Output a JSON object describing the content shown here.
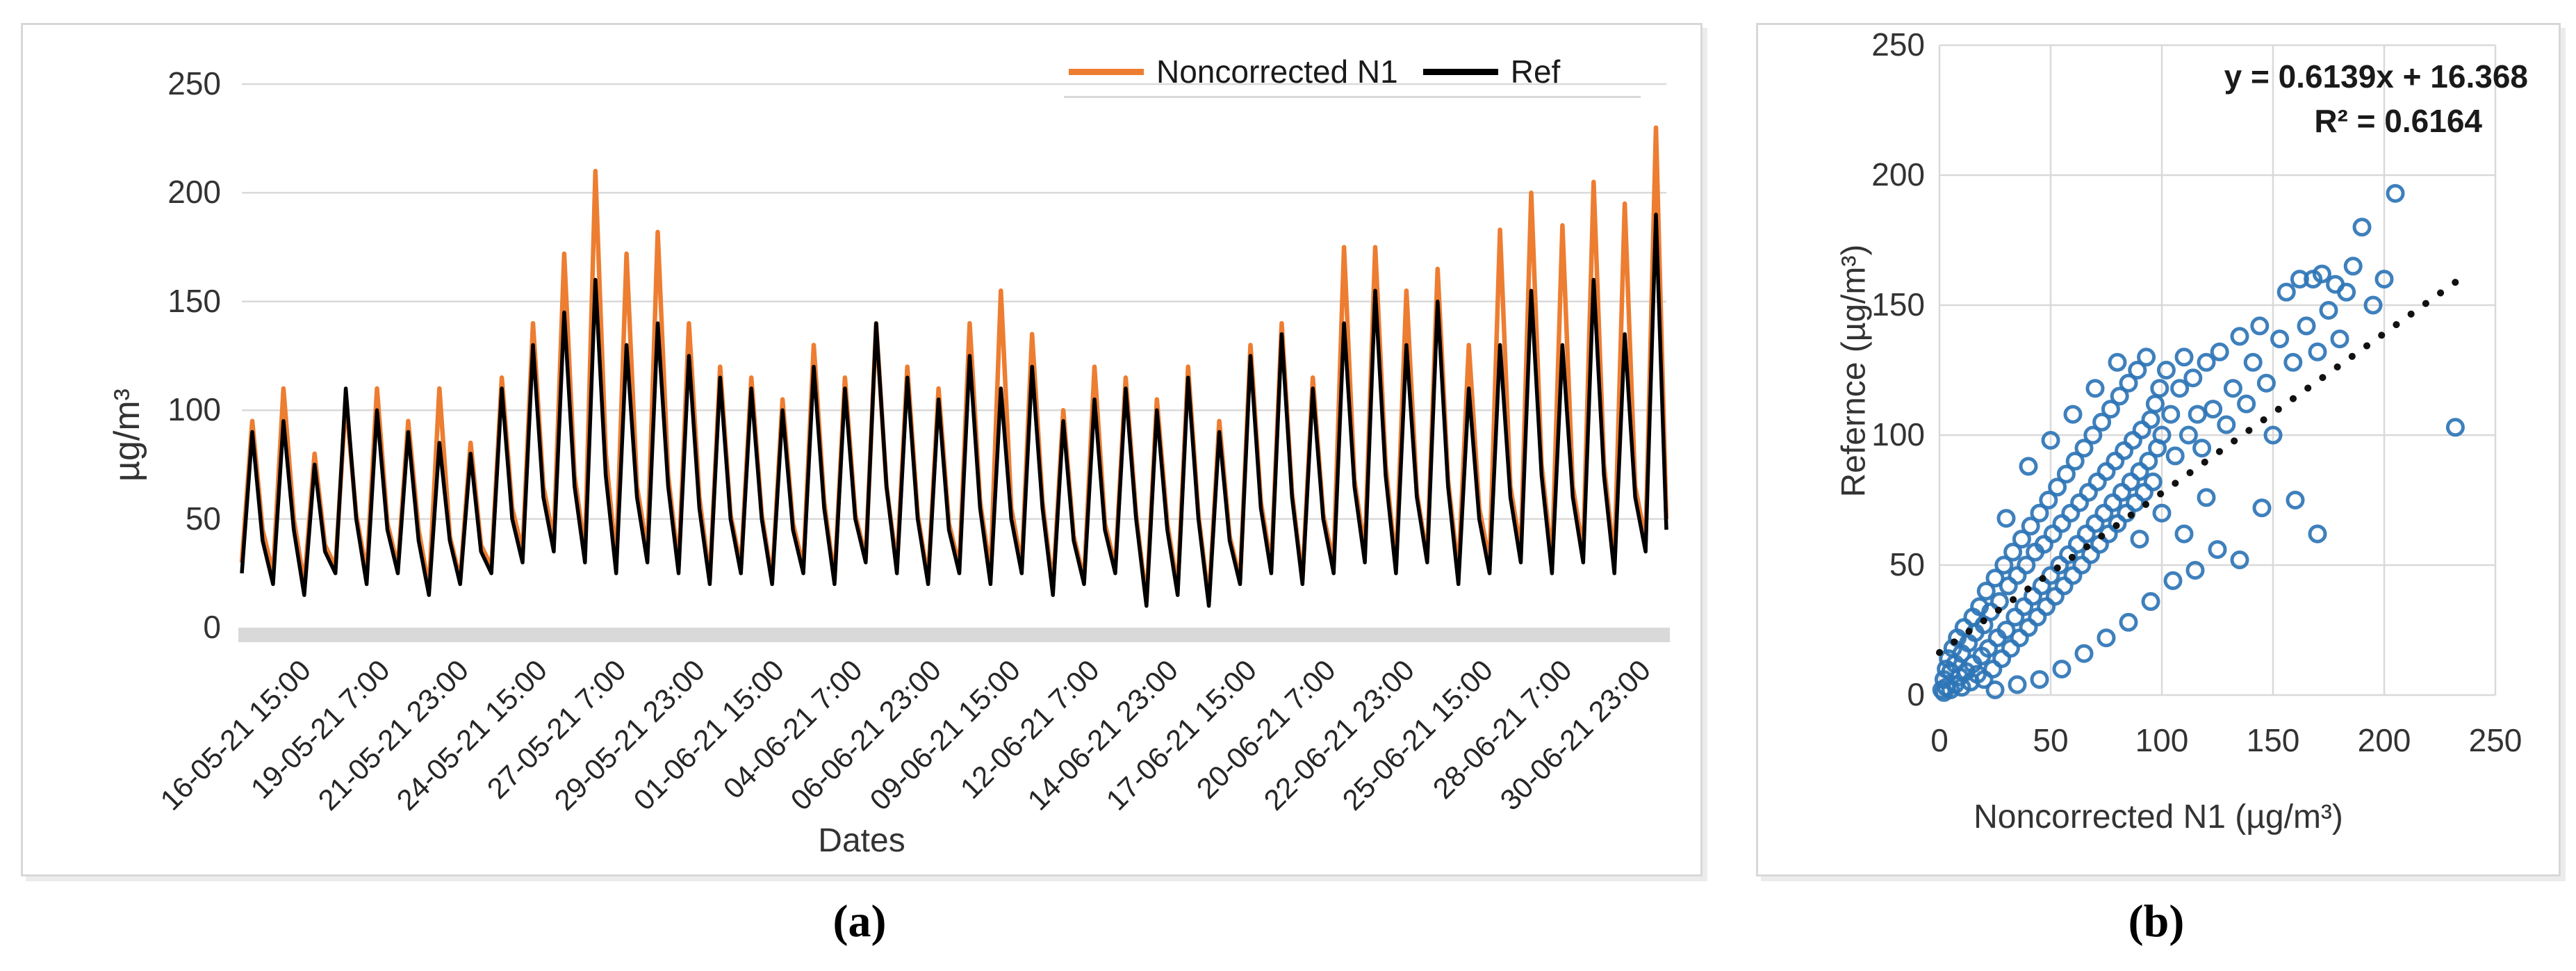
{
  "figure": {
    "panel_a": {
      "caption": "(a)",
      "y_axis_label": "µg/m³",
      "x_axis_label": "Dates"
    },
    "panel_b": {
      "caption": "(b)",
      "y_axis_label": "Refernce (µg/m³)",
      "x_axis_label": "Noncorrected N1 (µg/m³)",
      "equation_line1": "y = 0.6139x + 16.368",
      "equation_line2": "R² = 0.6164"
    },
    "colors": {
      "noncorrected": "#ED7D31",
      "ref": "#000000",
      "scatter": "#2E75B6",
      "grid": "#D9D9D9",
      "baseline_band": "#D9D9D9",
      "trendline": "#111111"
    }
  },
  "chart_data": [
    {
      "type": "line",
      "title": "",
      "xlabel": "Dates",
      "ylabel": "µg/m³",
      "ylim": [
        0,
        250
      ],
      "y_ticks": [
        0,
        50,
        100,
        150,
        200,
        250
      ],
      "grid": true,
      "legend_position": "top-right",
      "x_tick_labels": [
        "16-05-21 15:00",
        "19-05-21 7:00",
        "21-05-21 23:00",
        "24-05-21 15:00",
        "27-05-21 7:00",
        "29-05-21 23:00",
        "01-06-21 15:00",
        "04-06-21 7:00",
        "06-06-21 23:00",
        "09-06-21 15:00",
        "12-06-21 7:00",
        "14-06-21 23:00",
        "17-06-21 15:00",
        "20-06-21 7:00",
        "22-06-21 23:00",
        "25-06-21 15:00",
        "28-06-21 7:00",
        "30-06-21 23:00"
      ],
      "series": [
        {
          "name": "Noncorrected N1",
          "color": "#ED7D31",
          "values": [
            30,
            95,
            45,
            25,
            110,
            50,
            20,
            80,
            38,
            28,
            105,
            52,
            25,
            110,
            48,
            28,
            95,
            45,
            18,
            110,
            42,
            22,
            85,
            38,
            28,
            115,
            55,
            35,
            140,
            65,
            40,
            172,
            70,
            35,
            210,
            80,
            30,
            172,
            65,
            35,
            182,
            70,
            28,
            140,
            60,
            22,
            120,
            52,
            28,
            115,
            52,
            22,
            105,
            48,
            28,
            130,
            58,
            22,
            115,
            52,
            32,
            140,
            65,
            28,
            120,
            52,
            22,
            110,
            48,
            28,
            140,
            58,
            25,
            155,
            55,
            28,
            135,
            58,
            18,
            100,
            42,
            22,
            120,
            48,
            28,
            115,
            52,
            12,
            105,
            48,
            18,
            120,
            52,
            12,
            95,
            42,
            22,
            130,
            58,
            28,
            140,
            62,
            22,
            115,
            52,
            30,
            175,
            68,
            35,
            175,
            75,
            28,
            155,
            62,
            32,
            165,
            68,
            25,
            130,
            55,
            30,
            183,
            65,
            35,
            200,
            75,
            30,
            185,
            65,
            35,
            205,
            75,
            30,
            195,
            65,
            40,
            230,
            50
          ]
        },
        {
          "name": "Ref",
          "color": "#000000",
          "values": [
            25,
            90,
            40,
            20,
            95,
            45,
            15,
            75,
            35,
            25,
            110,
            50,
            20,
            100,
            45,
            25,
            90,
            40,
            15,
            85,
            40,
            20,
            80,
            35,
            25,
            110,
            50,
            30,
            130,
            60,
            35,
            145,
            65,
            30,
            160,
            70,
            25,
            130,
            60,
            30,
            140,
            65,
            25,
            125,
            55,
            20,
            115,
            50,
            25,
            110,
            50,
            20,
            100,
            45,
            25,
            120,
            55,
            20,
            110,
            50,
            30,
            140,
            65,
            25,
            115,
            50,
            20,
            105,
            45,
            25,
            125,
            55,
            20,
            110,
            50,
            25,
            120,
            55,
            15,
            95,
            40,
            20,
            105,
            45,
            25,
            110,
            50,
            10,
            100,
            45,
            15,
            115,
            50,
            10,
            90,
            40,
            20,
            125,
            55,
            25,
            135,
            60,
            20,
            110,
            50,
            25,
            140,
            65,
            30,
            155,
            70,
            25,
            130,
            60,
            30,
            150,
            65,
            20,
            110,
            50,
            25,
            130,
            60,
            30,
            155,
            70,
            25,
            130,
            60,
            30,
            160,
            70,
            25,
            135,
            60,
            35,
            190,
            45
          ]
        }
      ]
    },
    {
      "type": "scatter",
      "title": "",
      "xlabel": "Noncorrected N1 (µg/m³)",
      "ylabel": "Refernce (µg/m³)",
      "xlim": [
        0,
        250
      ],
      "ylim": [
        0,
        250
      ],
      "x_ticks": [
        0,
        50,
        100,
        150,
        200,
        250
      ],
      "y_ticks": [
        0,
        50,
        100,
        150,
        200,
        250
      ],
      "grid": true,
      "marker": "open-circle",
      "color": "#2E75B6",
      "trendline": {
        "slope": 0.6139,
        "intercept": 16.368,
        "r2": 0.6164,
        "style": "dotted",
        "color": "#111111",
        "x_range": [
          0,
          235
        ]
      },
      "points": [
        [
          1,
          2
        ],
        [
          2,
          6
        ],
        [
          2,
          1
        ],
        [
          3,
          10
        ],
        [
          3,
          3
        ],
        [
          4,
          14
        ],
        [
          5,
          2
        ],
        [
          5,
          9
        ],
        [
          6,
          18
        ],
        [
          7,
          4
        ],
        [
          7,
          12
        ],
        [
          8,
          22
        ],
        [
          9,
          7
        ],
        [
          10,
          16
        ],
        [
          10,
          3
        ],
        [
          11,
          26
        ],
        [
          12,
          9
        ],
        [
          13,
          20
        ],
        [
          14,
          5
        ],
        [
          15,
          30
        ],
        [
          15,
          12
        ],
        [
          16,
          24
        ],
        [
          17,
          8
        ],
        [
          18,
          34
        ],
        [
          19,
          15
        ],
        [
          20,
          27
        ],
        [
          20,
          6
        ],
        [
          21,
          40
        ],
        [
          22,
          18
        ],
        [
          23,
          32
        ],
        [
          24,
          10
        ],
        [
          25,
          45
        ],
        [
          26,
          22
        ],
        [
          27,
          36
        ],
        [
          28,
          14
        ],
        [
          29,
          50
        ],
        [
          30,
          25
        ],
        [
          31,
          42
        ],
        [
          32,
          18
        ],
        [
          33,
          55
        ],
        [
          34,
          30
        ],
        [
          35,
          46
        ],
        [
          36,
          22
        ],
        [
          37,
          60
        ],
        [
          38,
          34
        ],
        [
          39,
          50
        ],
        [
          40,
          26
        ],
        [
          41,
          65
        ],
        [
          42,
          38
        ],
        [
          43,
          55
        ],
        [
          44,
          30
        ],
        [
          45,
          70
        ],
        [
          46,
          42
        ],
        [
          47,
          58
        ],
        [
          48,
          34
        ],
        [
          49,
          75
        ],
        [
          50,
          46
        ],
        [
          51,
          62
        ],
        [
          52,
          38
        ],
        [
          53,
          80
        ],
        [
          54,
          50
        ],
        [
          55,
          66
        ],
        [
          56,
          42
        ],
        [
          57,
          85
        ],
        [
          58,
          54
        ],
        [
          59,
          70
        ],
        [
          60,
          46
        ],
        [
          61,
          90
        ],
        [
          62,
          58
        ],
        [
          63,
          74
        ],
        [
          64,
          50
        ],
        [
          65,
          95
        ],
        [
          66,
          62
        ],
        [
          67,
          78
        ],
        [
          68,
          54
        ],
        [
          69,
          100
        ],
        [
          70,
          66
        ],
        [
          71,
          82
        ],
        [
          72,
          58
        ],
        [
          73,
          105
        ],
        [
          74,
          70
        ],
        [
          75,
          86
        ],
        [
          76,
          62
        ],
        [
          77,
          110
        ],
        [
          78,
          74
        ],
        [
          79,
          90
        ],
        [
          80,
          66
        ],
        [
          81,
          115
        ],
        [
          82,
          78
        ],
        [
          83,
          94
        ],
        [
          84,
          70
        ],
        [
          85,
          120
        ],
        [
          86,
          82
        ],
        [
          87,
          98
        ],
        [
          88,
          74
        ],
        [
          89,
          125
        ],
        [
          90,
          86
        ],
        [
          91,
          102
        ],
        [
          92,
          78
        ],
        [
          93,
          130
        ],
        [
          94,
          90
        ],
        [
          95,
          106
        ],
        [
          96,
          82
        ],
        [
          97,
          112
        ],
        [
          98,
          95
        ],
        [
          99,
          118
        ],
        [
          100,
          100
        ],
        [
          102,
          125
        ],
        [
          104,
          108
        ],
        [
          106,
          92
        ],
        [
          108,
          118
        ],
        [
          110,
          130
        ],
        [
          112,
          100
        ],
        [
          114,
          122
        ],
        [
          116,
          108
        ],
        [
          118,
          95
        ],
        [
          120,
          128
        ],
        [
          123,
          110
        ],
        [
          126,
          132
        ],
        [
          129,
          104
        ],
        [
          132,
          118
        ],
        [
          135,
          138
        ],
        [
          138,
          112
        ],
        [
          141,
          128
        ],
        [
          144,
          142
        ],
        [
          147,
          120
        ],
        [
          150,
          100
        ],
        [
          153,
          137
        ],
        [
          156,
          155
        ],
        [
          159,
          128
        ],
        [
          162,
          160
        ],
        [
          165,
          142
        ],
        [
          168,
          160
        ],
        [
          170,
          132
        ],
        [
          172,
          162
        ],
        [
          175,
          148
        ],
        [
          178,
          158
        ],
        [
          180,
          137
        ],
        [
          183,
          155
        ],
        [
          186,
          165
        ],
        [
          190,
          180
        ],
        [
          195,
          150
        ],
        [
          200,
          160
        ],
        [
          205,
          193
        ],
        [
          232,
          103
        ],
        [
          160,
          75
        ],
        [
          170,
          62
        ],
        [
          145,
          72
        ],
        [
          125,
          56
        ],
        [
          135,
          52
        ],
        [
          115,
          48
        ],
        [
          105,
          44
        ],
        [
          95,
          36
        ],
        [
          85,
          28
        ],
        [
          75,
          22
        ],
        [
          65,
          16
        ],
        [
          55,
          10
        ],
        [
          45,
          6
        ],
        [
          35,
          4
        ],
        [
          25,
          2
        ],
        [
          30,
          68
        ],
        [
          40,
          88
        ],
        [
          50,
          98
        ],
        [
          60,
          108
        ],
        [
          70,
          118
        ],
        [
          80,
          128
        ],
        [
          90,
          60
        ],
        [
          100,
          70
        ],
        [
          110,
          62
        ],
        [
          120,
          76
        ]
      ]
    }
  ]
}
